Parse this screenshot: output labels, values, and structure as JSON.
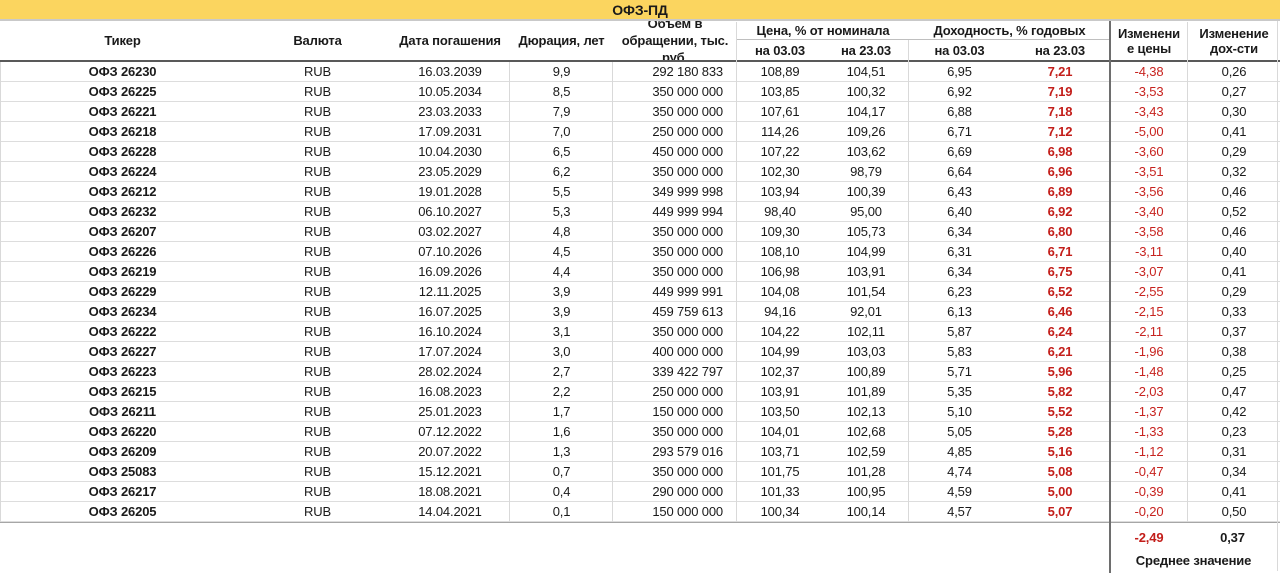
{
  "title": "ОФЗ-ПД",
  "colors": {
    "title_bg": "#FBD55F",
    "red": "#C31E1A",
    "divider_dark": "#6E6E6E",
    "divider_light": "#D9D9D9"
  },
  "header": {
    "ticker": "Тикер",
    "currency": "Валюта",
    "maturity": "Дата погашения",
    "duration": "Дюрация, лет",
    "volume_l1": "Объем в",
    "volume_l2": "обращении, тыс.",
    "volume_l3": "руб.",
    "price_group": "Цена, % от номинала",
    "yield_group": "Доходность, % годовых",
    "price_date1": "на 03.03",
    "price_date2": "на 23.03",
    "yield_date1": "на 03.03",
    "yield_date2": "на 23.03",
    "price_change_l1": "Изменени",
    "price_change_l2": "е цены",
    "yield_change_l1": "Изменение",
    "yield_change_l2": "дох-сти"
  },
  "summary": {
    "avg_price_change": "-2,49",
    "avg_yield_change": "0,37",
    "label": "Среднее значение"
  },
  "chart_data": {
    "type": "table",
    "title": "ОФЗ-ПД",
    "columns": [
      "Тикер",
      "Валюта",
      "Дата погашения",
      "Дюрация, лет",
      "Объем в обращении, тыс. руб.",
      "Цена, % от номинала на 03.03",
      "Цена, % от номинала на 23.03",
      "Доходность, % годовых на 03.03",
      "Доходность, % годовых на 23.03",
      "Изменение цены",
      "Изменение дох-сти"
    ],
    "rows": [
      [
        "ОФЗ 26230",
        "RUB",
        "16.03.2039",
        "9,9",
        "292 180 833",
        "108,89",
        "104,51",
        "6,95",
        "7,21",
        "-4,38",
        "0,26"
      ],
      [
        "ОФЗ 26225",
        "RUB",
        "10.05.2034",
        "8,5",
        "350 000 000",
        "103,85",
        "100,32",
        "6,92",
        "7,19",
        "-3,53",
        "0,27"
      ],
      [
        "ОФЗ 26221",
        "RUB",
        "23.03.2033",
        "7,9",
        "350 000 000",
        "107,61",
        "104,17",
        "6,88",
        "7,18",
        "-3,43",
        "0,30"
      ],
      [
        "ОФЗ 26218",
        "RUB",
        "17.09.2031",
        "7,0",
        "250 000 000",
        "114,26",
        "109,26",
        "6,71",
        "7,12",
        "-5,00",
        "0,41"
      ],
      [
        "ОФЗ 26228",
        "RUB",
        "10.04.2030",
        "6,5",
        "450 000 000",
        "107,22",
        "103,62",
        "6,69",
        "6,98",
        "-3,60",
        "0,29"
      ],
      [
        "ОФЗ 26224",
        "RUB",
        "23.05.2029",
        "6,2",
        "350 000 000",
        "102,30",
        "98,79",
        "6,64",
        "6,96",
        "-3,51",
        "0,32"
      ],
      [
        "ОФЗ 26212",
        "RUB",
        "19.01.2028",
        "5,5",
        "349 999 998",
        "103,94",
        "100,39",
        "6,43",
        "6,89",
        "-3,56",
        "0,46"
      ],
      [
        "ОФЗ 26232",
        "RUB",
        "06.10.2027",
        "5,3",
        "449 999 994",
        "98,40",
        "95,00",
        "6,40",
        "6,92",
        "-3,40",
        "0,52"
      ],
      [
        "ОФЗ 26207",
        "RUB",
        "03.02.2027",
        "4,8",
        "350 000 000",
        "109,30",
        "105,73",
        "6,34",
        "6,80",
        "-3,58",
        "0,46"
      ],
      [
        "ОФЗ 26226",
        "RUB",
        "07.10.2026",
        "4,5",
        "350 000 000",
        "108,10",
        "104,99",
        "6,31",
        "6,71",
        "-3,11",
        "0,40"
      ],
      [
        "ОФЗ 26219",
        "RUB",
        "16.09.2026",
        "4,4",
        "350 000 000",
        "106,98",
        "103,91",
        "6,34",
        "6,75",
        "-3,07",
        "0,41"
      ],
      [
        "ОФЗ 26229",
        "RUB",
        "12.11.2025",
        "3,9",
        "449 999 991",
        "104,08",
        "101,54",
        "6,23",
        "6,52",
        "-2,55",
        "0,29"
      ],
      [
        "ОФЗ 26234",
        "RUB",
        "16.07.2025",
        "3,9",
        "459 759 613",
        "94,16",
        "92,01",
        "6,13",
        "6,46",
        "-2,15",
        "0,33"
      ],
      [
        "ОФЗ 26222",
        "RUB",
        "16.10.2024",
        "3,1",
        "350 000 000",
        "104,22",
        "102,11",
        "5,87",
        "6,24",
        "-2,11",
        "0,37"
      ],
      [
        "ОФЗ 26227",
        "RUB",
        "17.07.2024",
        "3,0",
        "400 000 000",
        "104,99",
        "103,03",
        "5,83",
        "6,21",
        "-1,96",
        "0,38"
      ],
      [
        "ОФЗ 26223",
        "RUB",
        "28.02.2024",
        "2,7",
        "339 422 797",
        "102,37",
        "100,89",
        "5,71",
        "5,96",
        "-1,48",
        "0,25"
      ],
      [
        "ОФЗ 26215",
        "RUB",
        "16.08.2023",
        "2,2",
        "250 000 000",
        "103,91",
        "101,89",
        "5,35",
        "5,82",
        "-2,03",
        "0,47"
      ],
      [
        "ОФЗ 26211",
        "RUB",
        "25.01.2023",
        "1,7",
        "150 000 000",
        "103,50",
        "102,13",
        "5,10",
        "5,52",
        "-1,37",
        "0,42"
      ],
      [
        "ОФЗ 26220",
        "RUB",
        "07.12.2022",
        "1,6",
        "350 000 000",
        "104,01",
        "102,68",
        "5,05",
        "5,28",
        "-1,33",
        "0,23"
      ],
      [
        "ОФЗ 26209",
        "RUB",
        "20.07.2022",
        "1,3",
        "293 579 016",
        "103,71",
        "102,59",
        "4,85",
        "5,16",
        "-1,12",
        "0,31"
      ],
      [
        "ОФЗ 25083",
        "RUB",
        "15.12.2021",
        "0,7",
        "350 000 000",
        "101,75",
        "101,28",
        "4,74",
        "5,08",
        "-0,47",
        "0,34"
      ],
      [
        "ОФЗ 26217",
        "RUB",
        "18.08.2021",
        "0,4",
        "290 000 000",
        "101,33",
        "100,95",
        "4,59",
        "5,00",
        "-0,39",
        "0,41"
      ],
      [
        "ОФЗ 26205",
        "RUB",
        "14.04.2021",
        "0,1",
        "150 000 000",
        "100,34",
        "100,14",
        "4,57",
        "5,07",
        "-0,20",
        "0,50"
      ]
    ]
  }
}
